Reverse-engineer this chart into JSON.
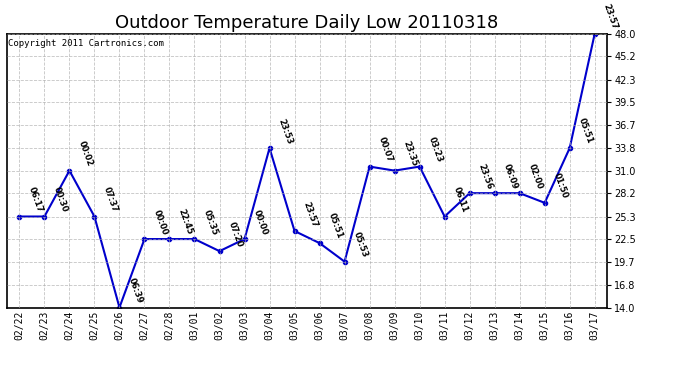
{
  "title": "Outdoor Temperature Daily Low 20110318",
  "copyright": "Copyright 2011 Cartronics.com",
  "dates": [
    "02/22",
    "02/23",
    "02/24",
    "02/25",
    "02/26",
    "02/27",
    "02/28",
    "03/01",
    "03/02",
    "03/03",
    "03/04",
    "03/05",
    "03/06",
    "03/07",
    "03/08",
    "03/09",
    "03/10",
    "03/11",
    "03/12",
    "03/13",
    "03/14",
    "03/15",
    "03/16",
    "03/17"
  ],
  "values": [
    25.3,
    25.3,
    31.0,
    25.3,
    14.0,
    22.5,
    22.5,
    22.5,
    21.0,
    22.5,
    33.8,
    23.5,
    22.0,
    19.7,
    31.5,
    31.0,
    31.5,
    25.3,
    28.2,
    28.2,
    28.2,
    27.0,
    33.8,
    48.0
  ],
  "labels": [
    "06:17",
    "00:30",
    "00:02",
    "07:37",
    "06:39",
    "00:00",
    "22:45",
    "05:35",
    "07:20",
    "00:00",
    "23:53",
    "23:57",
    "05:51",
    "05:53",
    "00:07",
    "23:35",
    "03:23",
    "06:11",
    "23:56",
    "06:09",
    "02:00",
    "01:50",
    "05:51",
    "23:57"
  ],
  "line_color": "#0000cc",
  "marker_color": "#0000cc",
  "background_color": "#ffffff",
  "grid_color": "#aaaaaa",
  "ylim": [
    14.0,
    48.0
  ],
  "yticks": [
    14.0,
    16.8,
    19.7,
    22.5,
    25.3,
    28.2,
    31.0,
    33.8,
    36.7,
    39.5,
    42.3,
    45.2,
    48.0
  ],
  "title_fontsize": 13,
  "copyright_fontsize": 6.5,
  "label_fontsize": 6.0
}
